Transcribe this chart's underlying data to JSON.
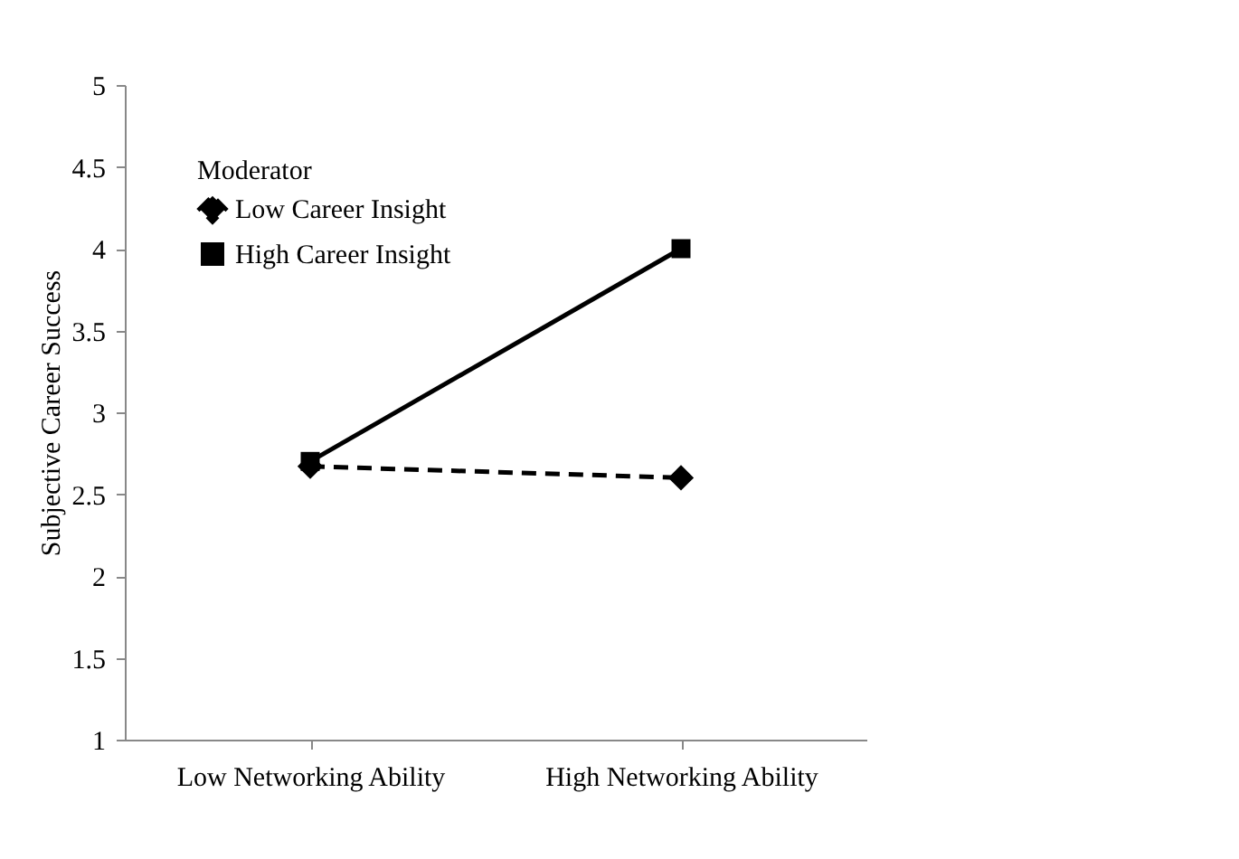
{
  "chart_data": {
    "type": "line",
    "ylabel": "Subjective Career Success",
    "legend_title": "Moderator",
    "categories": [
      "Low Networking Ability",
      "High Networking Ability"
    ],
    "series": [
      {
        "name": "Low Career Insight",
        "color": "#000000",
        "values": [
          2.67,
          2.6
        ],
        "marker": "diamond",
        "line_style": "dashed"
      },
      {
        "name": "High Career Insight",
        "color": "#000000",
        "values": [
          2.7,
          4.0
        ],
        "marker": "square",
        "line_style": "solid"
      }
    ],
    "ylim": [
      1,
      5
    ],
    "yticks": [
      1,
      1.5,
      2,
      2.5,
      3,
      3.5,
      4,
      4.5,
      5
    ],
    "grid": false,
    "legend": "top left"
  }
}
